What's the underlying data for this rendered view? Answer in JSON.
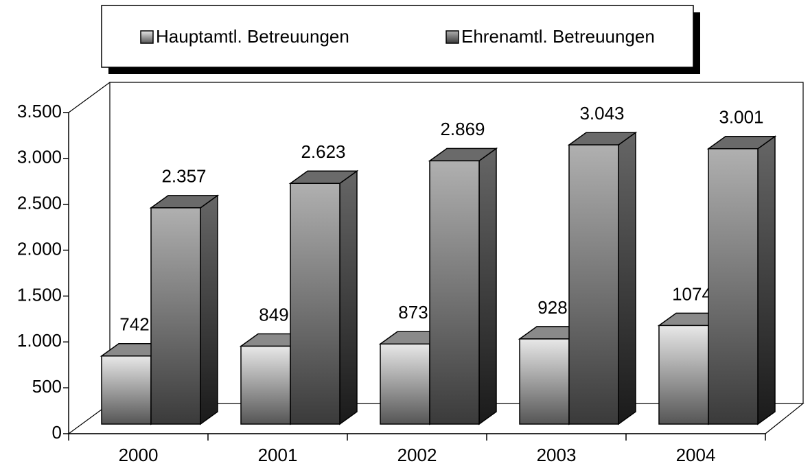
{
  "chart_data": {
    "type": "bar3d",
    "categories": [
      "2000",
      "2001",
      "2002",
      "2003",
      "2004"
    ],
    "series": [
      {
        "name": "Hauptamtl. Betreuungen",
        "color": "#e8e8e8",
        "values": [
          742,
          849,
          873,
          928,
          1074
        ]
      },
      {
        "name": "Ehrenamtl. Betreuungen",
        "color": "#b0b0b0",
        "values": [
          2357,
          2623,
          2869,
          3043,
          3001
        ],
        "value_labels": [
          "2.357",
          "2.623",
          "2.869",
          "3.043",
          "3.001"
        ]
      }
    ],
    "ylim": [
      0,
      3500
    ],
    "yticks": [
      0,
      500,
      {
        "value": 1000,
        "label": "1.000"
      },
      {
        "value": 1500,
        "label": "1.500"
      },
      {
        "value": 2000,
        "label": "2.000"
      },
      {
        "value": 2500,
        "label": "2.500"
      },
      {
        "value": 3000,
        "label": "3.000"
      },
      {
        "value": 3500,
        "label": "3.500"
      }
    ],
    "legend": "top"
  }
}
